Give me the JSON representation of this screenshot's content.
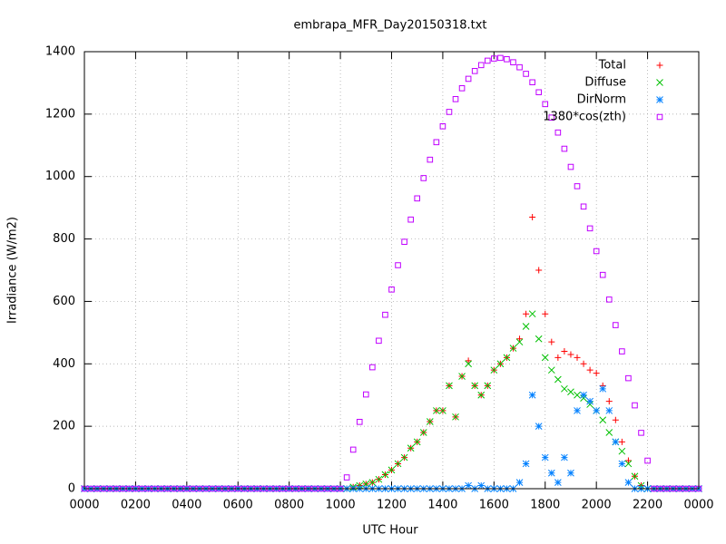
{
  "chart_data": {
    "type": "scatter",
    "title": "embrapa_MFR_Day20150318.txt",
    "xlabel": "UTC Hour",
    "ylabel": "Irradiance (W/m2)",
    "xlim": [
      0,
      24
    ],
    "ylim": [
      0,
      1400
    ],
    "xticks": [
      {
        "value": 0,
        "label": "0000"
      },
      {
        "value": 2,
        "label": "0200"
      },
      {
        "value": 4,
        "label": "0400"
      },
      {
        "value": 6,
        "label": "0600"
      },
      {
        "value": 8,
        "label": "0800"
      },
      {
        "value": 10,
        "label": "1000"
      },
      {
        "value": 12,
        "label": "1200"
      },
      {
        "value": 14,
        "label": "1400"
      },
      {
        "value": 16,
        "label": "1600"
      },
      {
        "value": 18,
        "label": "1800"
      },
      {
        "value": 20,
        "label": "2000"
      },
      {
        "value": 22,
        "label": "2200"
      },
      {
        "value": 24,
        "label": "0000"
      }
    ],
    "yticks": [
      0,
      200,
      400,
      600,
      800,
      1000,
      1200,
      1400
    ],
    "grid": true,
    "legend": "top-right",
    "x": [
      0,
      0.25,
      0.5,
      0.75,
      1,
      1.25,
      1.5,
      1.75,
      2,
      2.25,
      2.5,
      2.75,
      3,
      3.25,
      3.5,
      3.75,
      4,
      4.25,
      4.5,
      4.75,
      5,
      5.25,
      5.5,
      5.75,
      6,
      6.25,
      6.5,
      6.75,
      7,
      7.25,
      7.5,
      7.75,
      8,
      8.25,
      8.5,
      8.75,
      9,
      9.25,
      9.5,
      9.75,
      10,
      10.25,
      10.5,
      10.75,
      11,
      11.25,
      11.5,
      11.75,
      12,
      12.25,
      12.5,
      12.75,
      13,
      13.25,
      13.5,
      13.75,
      14,
      14.25,
      14.5,
      14.75,
      15,
      15.25,
      15.5,
      15.75,
      16,
      16.25,
      16.5,
      16.75,
      17,
      17.25,
      17.5,
      17.75,
      18,
      18.25,
      18.5,
      18.75,
      19,
      19.25,
      19.5,
      19.75,
      20,
      20.25,
      20.5,
      20.75,
      21,
      21.25,
      21.5,
      21.75,
      22,
      22.25,
      22.5,
      22.75,
      23,
      23.25,
      23.5,
      23.75,
      24
    ],
    "series": [
      {
        "name": "Total",
        "color": "#ff0000",
        "marker": "plus",
        "values": [
          0,
          0,
          0,
          0,
          0,
          0,
          0,
          0,
          0,
          0,
          0,
          0,
          0,
          0,
          0,
          0,
          0,
          0,
          0,
          0,
          0,
          0,
          0,
          0,
          0,
          0,
          0,
          0,
          0,
          0,
          0,
          0,
          0,
          0,
          0,
          0,
          0,
          0,
          0,
          0,
          0,
          0,
          5,
          10,
          15,
          20,
          30,
          45,
          60,
          80,
          100,
          130,
          150,
          180,
          215,
          250,
          250,
          330,
          230,
          360,
          410,
          330,
          300,
          330,
          380,
          400,
          420,
          450,
          480,
          560,
          870,
          700,
          560,
          470,
          420,
          440,
          430,
          420,
          400,
          380,
          370,
          330,
          280,
          220,
          150,
          90,
          40,
          10,
          0,
          0,
          0,
          0,
          0,
          0,
          0,
          0,
          0
        ]
      },
      {
        "name": "Diffuse",
        "color": "#00c000",
        "marker": "cross",
        "values": [
          0,
          0,
          0,
          0,
          0,
          0,
          0,
          0,
          0,
          0,
          0,
          0,
          0,
          0,
          0,
          0,
          0,
          0,
          0,
          0,
          0,
          0,
          0,
          0,
          0,
          0,
          0,
          0,
          0,
          0,
          0,
          0,
          0,
          0,
          0,
          0,
          0,
          0,
          0,
          0,
          0,
          0,
          5,
          10,
          15,
          20,
          30,
          45,
          60,
          80,
          100,
          130,
          150,
          180,
          215,
          250,
          250,
          330,
          230,
          360,
          400,
          330,
          300,
          330,
          380,
          400,
          420,
          450,
          470,
          520,
          560,
          480,
          420,
          380,
          350,
          320,
          310,
          300,
          290,
          270,
          250,
          220,
          180,
          150,
          120,
          80,
          40,
          10,
          0,
          0,
          0,
          0,
          0,
          0,
          0,
          0,
          0
        ]
      },
      {
        "name": "DirNorm",
        "color": "#0080ff",
        "marker": "star",
        "values": [
          0,
          0,
          0,
          0,
          0,
          0,
          0,
          0,
          0,
          0,
          0,
          0,
          0,
          0,
          0,
          0,
          0,
          0,
          0,
          0,
          0,
          0,
          0,
          0,
          0,
          0,
          0,
          0,
          0,
          0,
          0,
          0,
          0,
          0,
          0,
          0,
          0,
          0,
          0,
          0,
          0,
          0,
          0,
          0,
          0,
          0,
          0,
          0,
          0,
          0,
          0,
          0,
          0,
          0,
          0,
          0,
          0,
          0,
          0,
          0,
          10,
          0,
          10,
          0,
          0,
          0,
          0,
          0,
          20,
          80,
          300,
          200,
          100,
          50,
          20,
          100,
          50,
          250,
          300,
          280,
          250,
          320,
          250,
          150,
          80,
          20,
          0,
          0,
          0,
          0,
          0,
          0,
          0,
          0,
          0,
          0,
          0
        ]
      },
      {
        "name": "1380*cos(zth)",
        "color": "#c000ff",
        "marker": "square",
        "values": [
          0,
          0,
          0,
          0,
          0,
          0,
          0,
          0,
          0,
          0,
          0,
          0,
          0,
          0,
          0,
          0,
          0,
          0,
          0,
          0,
          0,
          0,
          0,
          0,
          0,
          0,
          0,
          0,
          0,
          0,
          0,
          0,
          0,
          0,
          0,
          0,
          0,
          0,
          0,
          0,
          0,
          36,
          125,
          214,
          302,
          389,
          474,
          557,
          638,
          716,
          791,
          862,
          930,
          995,
          1054,
          1110,
          1161,
          1207,
          1248,
          1283,
          1313,
          1338,
          1357,
          1371,
          1378,
          1380,
          1376,
          1366,
          1350,
          1329,
          1302,
          1270,
          1232,
          1189,
          1141,
          1089,
          1031,
          969,
          904,
          834,
          761,
          685,
          606,
          524,
          440,
          354,
          267,
          179,
          90,
          0,
          0,
          0,
          0,
          0,
          0,
          0,
          0
        ]
      }
    ]
  }
}
